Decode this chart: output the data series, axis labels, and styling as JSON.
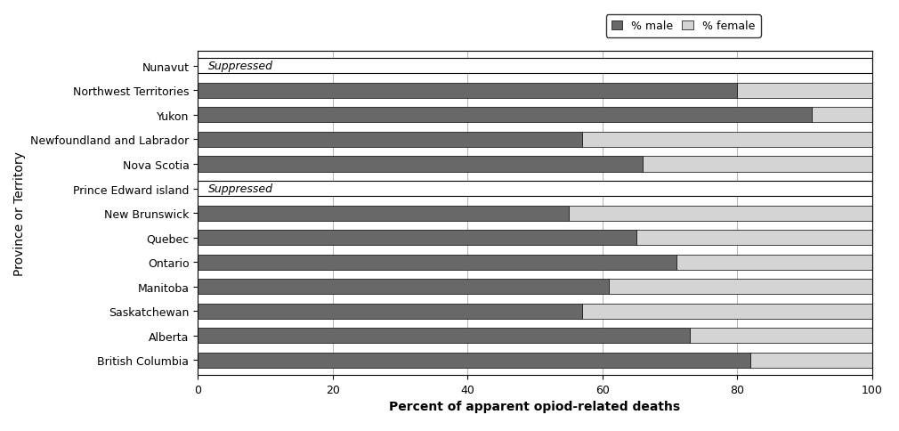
{
  "provinces": [
    "British Columbia",
    "Alberta",
    "Saskatchewan",
    "Manitoba",
    "Ontario",
    "Quebec",
    "New Brunswick",
    "Prince Edward island",
    "Nova Scotia",
    "Newfoundland and Labrador",
    "Yukon",
    "Northwest Territories",
    "Nunavut"
  ],
  "male_pct": [
    82,
    73,
    57,
    61,
    71,
    65,
    55,
    null,
    66,
    57,
    91,
    80,
    null
  ],
  "female_pct": [
    18,
    27,
    43,
    39,
    29,
    35,
    45,
    null,
    34,
    43,
    9,
    20,
    null
  ],
  "suppressed": [
    false,
    false,
    false,
    false,
    false,
    false,
    false,
    true,
    false,
    false,
    false,
    false,
    true
  ],
  "male_color": "#686868",
  "female_color": "#d4d4d4",
  "suppressed_text": "Suppressed",
  "xlabel": "Percent of apparent opiod-related deaths",
  "ylabel": "Province or Territory",
  "xlim": [
    0,
    100
  ],
  "xticks": [
    0,
    20,
    40,
    60,
    80,
    100
  ],
  "legend_labels": [
    "% male",
    "% female"
  ],
  "bar_height": 0.62,
  "background_color": "#ffffff",
  "axis_fontsize": 10,
  "tick_fontsize": 9,
  "legend_fontsize": 9
}
